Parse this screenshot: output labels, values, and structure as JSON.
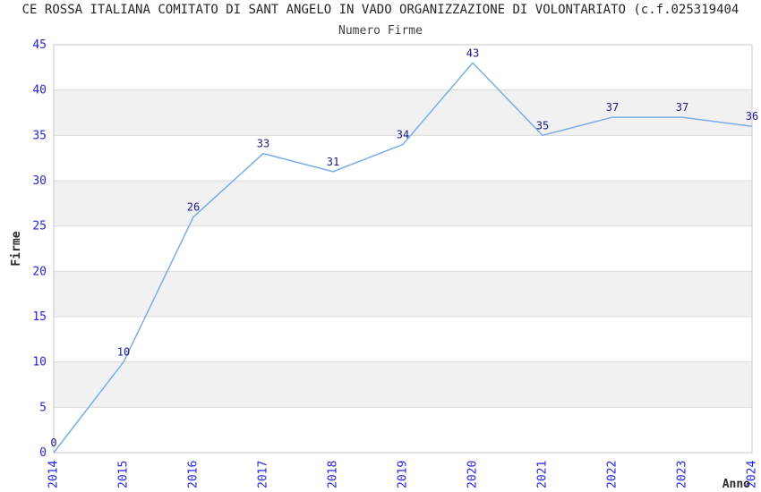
{
  "chart_data": {
    "type": "line",
    "title": "CE ROSSA ITALIANA COMITATO DI SANT ANGELO IN VADO ORGANIZZAZIONE DI VOLONTARIATO (c.f.025319404",
    "subtitle": "Numero Firme",
    "xlabel": "Anno",
    "ylabel": "Firme",
    "categories": [
      "2014",
      "2015",
      "2016",
      "2017",
      "2018",
      "2019",
      "2020",
      "2021",
      "2022",
      "2023",
      "2024"
    ],
    "values": [
      0,
      10,
      26,
      33,
      31,
      34,
      43,
      35,
      37,
      37,
      36
    ],
    "ylim": [
      0,
      45
    ],
    "ytick_step": 5,
    "yticks": [
      0,
      5,
      10,
      15,
      20,
      25,
      30,
      35,
      40,
      45
    ],
    "grid": "horizontal-lines-with-alternating-bands",
    "legend": "none",
    "colors": {
      "line": "#79ade8",
      "tick_label": "#2525dd",
      "data_label": "#1a1a80",
      "band_fill": "#f1f1f1",
      "grid_line": "#dcdcdc",
      "plot_border": "#c9c9c9",
      "title": "#262626",
      "subtitle": "#404040",
      "axis_title": "#2b2b2b",
      "background": "#ffffff"
    }
  }
}
